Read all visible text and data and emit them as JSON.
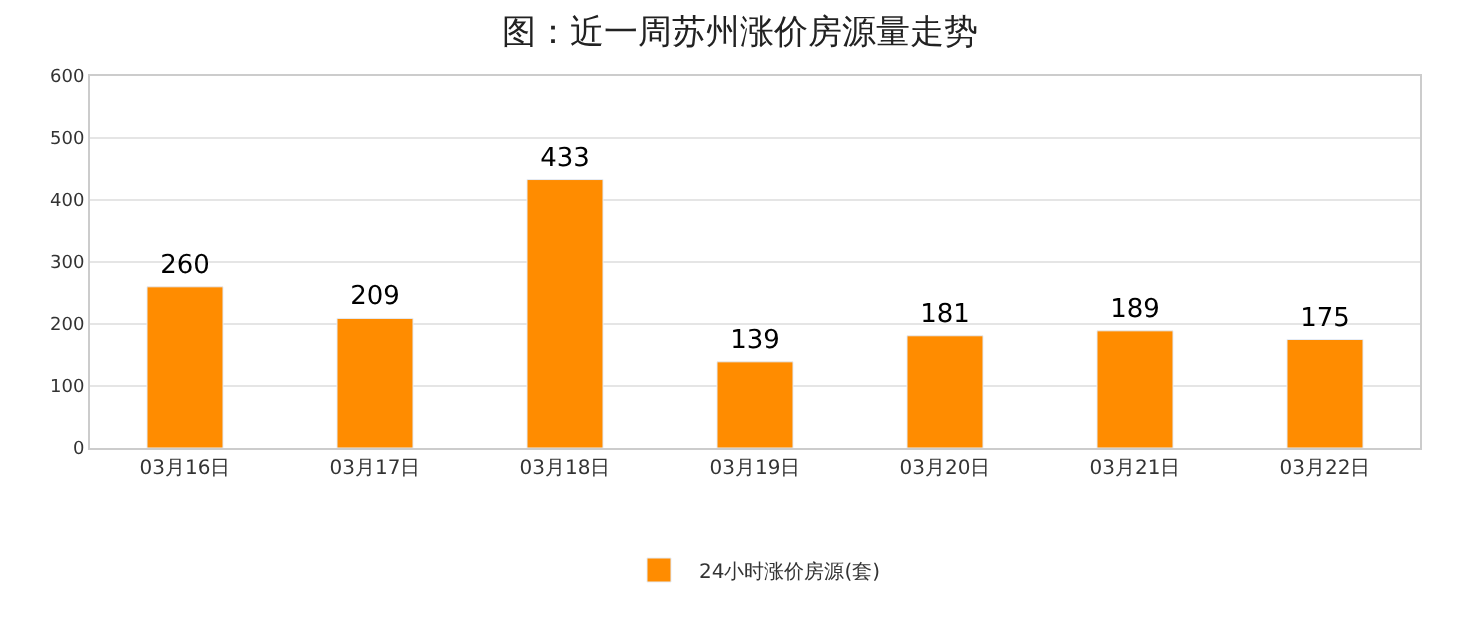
{
  "chart_data": {
    "type": "bar",
    "title": "图：近一周苏州涨价房源量走势",
    "categories": [
      "03月16日",
      "03月17日",
      "03月18日",
      "03月19日",
      "03月20日",
      "03月21日",
      "03月22日"
    ],
    "series": [
      {
        "name": "24小时涨价房源(套)",
        "color": "#ff8c00",
        "values": [
          260,
          209,
          433,
          139,
          181,
          189,
          175
        ]
      }
    ],
    "ylim": [
      0,
      600
    ],
    "yticks": [
      0,
      100,
      200,
      300,
      400,
      500,
      600
    ],
    "grid": "y",
    "legend": "bottom",
    "data_labels": true
  }
}
